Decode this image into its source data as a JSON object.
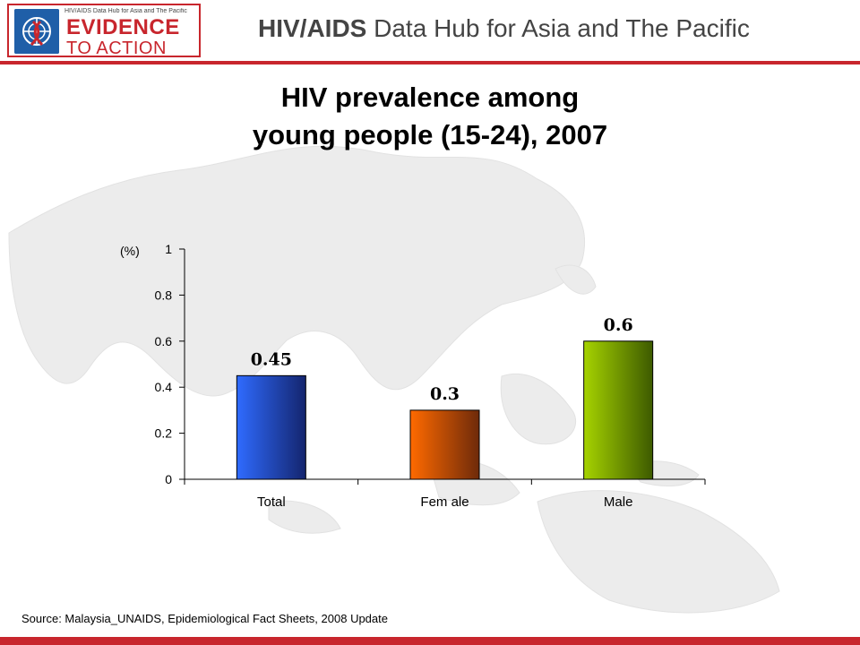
{
  "header": {
    "logo_small_text": "HIV/AIDS Data Hub for Asia and The Pacific",
    "logo_line1": "EVIDENCE",
    "logo_line2": "TO ACTION",
    "hub_title_bold": "HIV/AIDS",
    "hub_title_rest": " Data Hub for Asia and The Pacific"
  },
  "title_line1": "HIV prevalence among",
  "title_line2": "young people (15-24), 2007",
  "source": "Source: Malaysia_UNAIDS, Epidemiological Fact Sheets, 2008 Update",
  "colors": {
    "brand_red": "#c8262d",
    "total": [
      "#2f6bff",
      "#14256e"
    ],
    "female": [
      "#ff6a00",
      "#6e2a0a"
    ],
    "male": [
      "#a6d300",
      "#3d5a00"
    ]
  },
  "chart_data": {
    "type": "bar",
    "categories": [
      "Total",
      "Fem ale",
      "Male"
    ],
    "values": [
      0.45,
      0.3,
      0.6
    ],
    "value_labels": [
      "0.45",
      "0.3",
      "0.6"
    ],
    "ylabel": "(%)",
    "ylim": [
      0,
      1
    ],
    "yticks": [
      "0",
      "0.2",
      "0.4",
      "0.6",
      "0.8",
      "1"
    ],
    "grid": false,
    "legend": "none"
  }
}
